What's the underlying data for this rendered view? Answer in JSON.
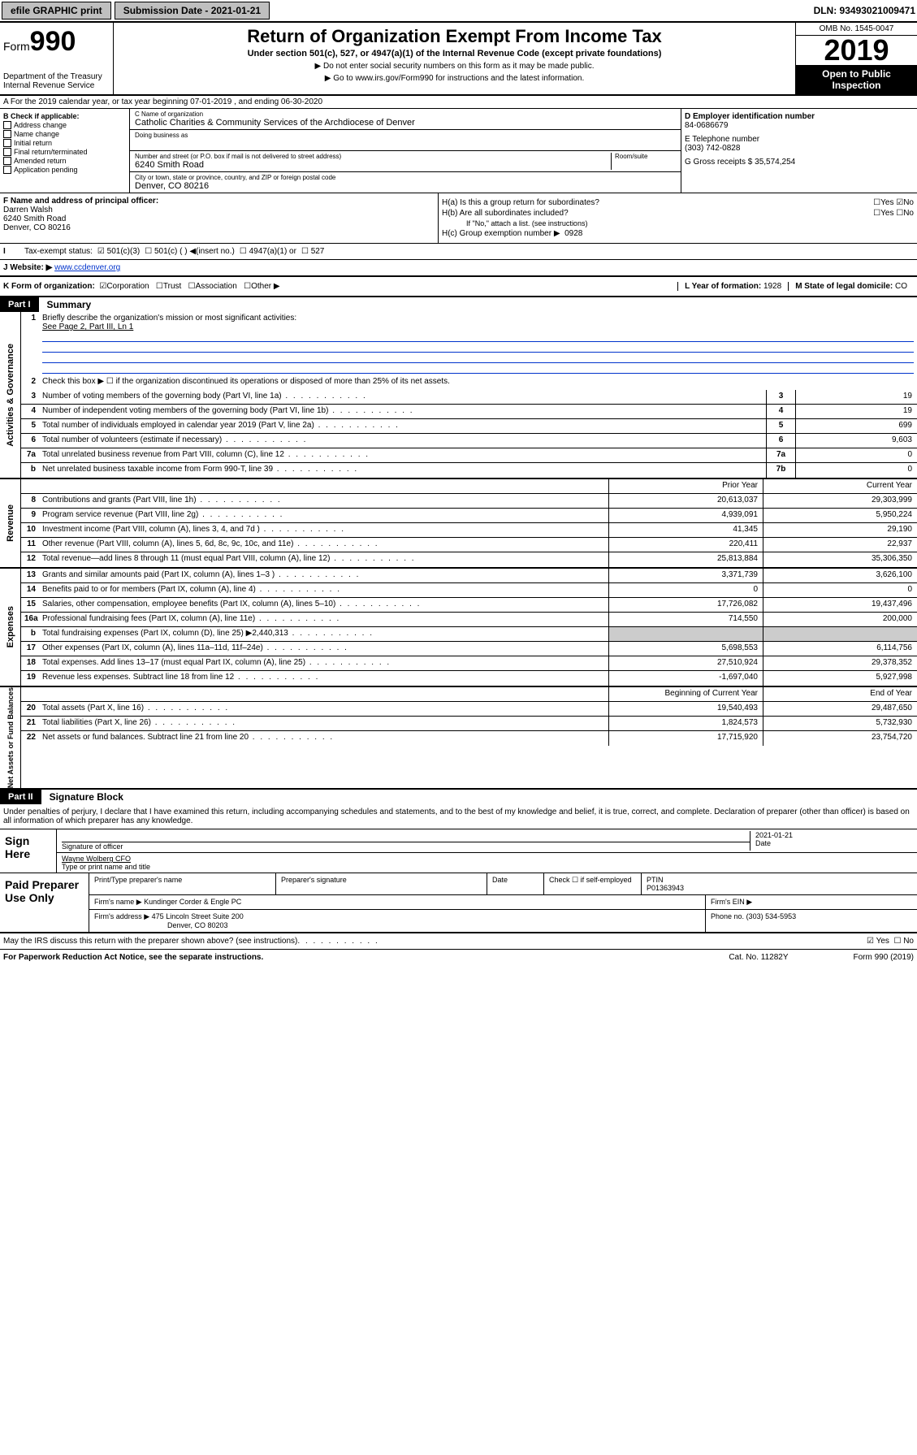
{
  "top": {
    "efile": "efile GRAPHIC print",
    "submission_label": "Submission Date - 2021-01-21",
    "dln": "DLN: 93493021009471"
  },
  "header": {
    "form_label": "Form",
    "form_num": "990",
    "dept": "Department of the Treasury Internal Revenue Service",
    "title": "Return of Organization Exempt From Income Tax",
    "subtitle": "Under section 501(c), 527, or 4947(a)(1) of the Internal Revenue Code (except private foundations)",
    "note1": "▶ Do not enter social security numbers on this form as it may be made public.",
    "note2": "▶ Go to www.irs.gov/Form990 for instructions and the latest information.",
    "omb": "OMB No. 1545-0047",
    "year": "2019",
    "open": "Open to Public Inspection"
  },
  "row_a": "A For the 2019 calendar year, or tax year beginning 07-01-2019    , and ending 06-30-2020",
  "box_b": {
    "title": "B Check if applicable:",
    "items": [
      "Address change",
      "Name change",
      "Initial return",
      "Final return/terminated",
      "Amended return",
      "Application pending"
    ]
  },
  "box_c": {
    "name_label": "C Name of organization",
    "name": "Catholic Charities & Community Services of the Archdiocese of Denver",
    "dba_label": "Doing business as",
    "addr_label": "Number and street (or P.O. box if mail is not delivered to street address)",
    "room_label": "Room/suite",
    "addr": "6240 Smith Road",
    "city_label": "City or town, state or province, country, and ZIP or foreign postal code",
    "city": "Denver, CO  80216"
  },
  "box_d": {
    "label": "D Employer identification number",
    "val": "84-0686679"
  },
  "box_e": {
    "label": "E Telephone number",
    "val": "(303) 742-0828"
  },
  "box_g": {
    "label": "G Gross receipts $",
    "val": "35,574,254"
  },
  "box_f": {
    "label": "F Name and address of principal officer:",
    "name": "Darren Walsh",
    "addr1": "6240 Smith Road",
    "addr2": "Denver, CO  80216"
  },
  "box_h": {
    "a": "H(a)  Is this a group return for subordinates?",
    "a_yes": "Yes",
    "a_no": "No",
    "b": "H(b)  Are all subordinates included?",
    "b_note": "If \"No,\" attach a list. (see instructions)",
    "c": "H(c)  Group exemption number ▶",
    "c_val": "0928"
  },
  "row_i": {
    "label": "Tax-exempt status:",
    "opt1": "501(c)(3)",
    "opt2": "501(c) (   ) ◀(insert no.)",
    "opt3": "4947(a)(1) or",
    "opt4": "527"
  },
  "row_j": {
    "label": "J Website: ▶",
    "val": "www.ccdenver.org"
  },
  "row_k": {
    "label": "K Form of organization:",
    "corp": "Corporation",
    "trust": "Trust",
    "assoc": "Association",
    "other": "Other ▶"
  },
  "row_l": {
    "label": "L Year of formation:",
    "val": "1928"
  },
  "row_m": {
    "label": "M State of legal domicile:",
    "val": "CO"
  },
  "part1": {
    "num": "Part I",
    "title": "Summary"
  },
  "governance": {
    "label": "Activities & Governance",
    "l1": "Briefly describe the organization's mission or most significant activities:",
    "l1_val": "See Page 2, Part III, Ln 1",
    "l2": "Check this box ▶ ☐  if the organization discontinued its operations or disposed of more than 25% of its net assets.",
    "rows": [
      {
        "n": "3",
        "d": "Number of voting members of the governing body (Part VI, line 1a)",
        "box": "3",
        "v": "19"
      },
      {
        "n": "4",
        "d": "Number of independent voting members of the governing body (Part VI, line 1b)",
        "box": "4",
        "v": "19"
      },
      {
        "n": "5",
        "d": "Total number of individuals employed in calendar year 2019 (Part V, line 2a)",
        "box": "5",
        "v": "699"
      },
      {
        "n": "6",
        "d": "Total number of volunteers (estimate if necessary)",
        "box": "6",
        "v": "9,603"
      },
      {
        "n": "7a",
        "d": "Total unrelated business revenue from Part VIII, column (C), line 12",
        "box": "7a",
        "v": "0"
      },
      {
        "n": "b",
        "d": "Net unrelated business taxable income from Form 990-T, line 39",
        "box": "7b",
        "v": "0"
      }
    ]
  },
  "revenue": {
    "label": "Revenue",
    "head_prior": "Prior Year",
    "head_curr": "Current Year",
    "rows": [
      {
        "n": "8",
        "d": "Contributions and grants (Part VIII, line 1h)",
        "p": "20,613,037",
        "c": "29,303,999"
      },
      {
        "n": "9",
        "d": "Program service revenue (Part VIII, line 2g)",
        "p": "4,939,091",
        "c": "5,950,224"
      },
      {
        "n": "10",
        "d": "Investment income (Part VIII, column (A), lines 3, 4, and 7d )",
        "p": "41,345",
        "c": "29,190"
      },
      {
        "n": "11",
        "d": "Other revenue (Part VIII, column (A), lines 5, 6d, 8c, 9c, 10c, and 11e)",
        "p": "220,411",
        "c": "22,937"
      },
      {
        "n": "12",
        "d": "Total revenue—add lines 8 through 11 (must equal Part VIII, column (A), line 12)",
        "p": "25,813,884",
        "c": "35,306,350"
      }
    ]
  },
  "expenses": {
    "label": "Expenses",
    "rows": [
      {
        "n": "13",
        "d": "Grants and similar amounts paid (Part IX, column (A), lines 1–3 )",
        "p": "3,371,739",
        "c": "3,626,100"
      },
      {
        "n": "14",
        "d": "Benefits paid to or for members (Part IX, column (A), line 4)",
        "p": "0",
        "c": "0"
      },
      {
        "n": "15",
        "d": "Salaries, other compensation, employee benefits (Part IX, column (A), lines 5–10)",
        "p": "17,726,082",
        "c": "19,437,496"
      },
      {
        "n": "16a",
        "d": "Professional fundraising fees (Part IX, column (A), line 11e)",
        "p": "714,550",
        "c": "200,000"
      },
      {
        "n": "b",
        "d": "Total fundraising expenses (Part IX, column (D), line 25) ▶2,440,313",
        "p": "",
        "c": ""
      },
      {
        "n": "17",
        "d": "Other expenses (Part IX, column (A), lines 11a–11d, 11f–24e)",
        "p": "5,698,553",
        "c": "6,114,756"
      },
      {
        "n": "18",
        "d": "Total expenses. Add lines 13–17 (must equal Part IX, column (A), line 25)",
        "p": "27,510,924",
        "c": "29,378,352"
      },
      {
        "n": "19",
        "d": "Revenue less expenses. Subtract line 18 from line 12",
        "p": "-1,697,040",
        "c": "5,927,998"
      }
    ]
  },
  "netassets": {
    "label": "Net Assets or Fund Balances",
    "head_prior": "Beginning of Current Year",
    "head_curr": "End of Year",
    "rows": [
      {
        "n": "20",
        "d": "Total assets (Part X, line 16)",
        "p": "19,540,493",
        "c": "29,487,650"
      },
      {
        "n": "21",
        "d": "Total liabilities (Part X, line 26)",
        "p": "1,824,573",
        "c": "5,732,930"
      },
      {
        "n": "22",
        "d": "Net assets or fund balances. Subtract line 21 from line 20",
        "p": "17,715,920",
        "c": "23,754,720"
      }
    ]
  },
  "part2": {
    "num": "Part II",
    "title": "Signature Block"
  },
  "sig": {
    "decl": "Under penalties of perjury, I declare that I have examined this return, including accompanying schedules and statements, and to the best of my knowledge and belief, it is true, correct, and complete. Declaration of preparer (other than officer) is based on all information of which preparer has any knowledge.",
    "sign_here": "Sign Here",
    "date": "2021-01-21",
    "sig_label": "Signature of officer",
    "date_label": "Date",
    "name": "Wayne Wolberg CFO",
    "name_label": "Type or print name and title"
  },
  "paid": {
    "title": "Paid Preparer Use Only",
    "h1": "Print/Type preparer's name",
    "h2": "Preparer's signature",
    "h3": "Date",
    "h4": "Check ☐ if self-employed",
    "h5": "PTIN",
    "ptin": "P01363943",
    "firm_label": "Firm's name    ▶",
    "firm": "Kundinger Corder & Engle PC",
    "ein_label": "Firm's EIN ▶",
    "addr_label": "Firm's address ▶",
    "addr1": "475 Lincoln Street Suite 200",
    "addr2": "Denver, CO  80203",
    "phone_label": "Phone no.",
    "phone": "(303) 534-5953"
  },
  "footer": {
    "q": "May the IRS discuss this return with the preparer shown above? (see instructions)",
    "yes": "Yes",
    "no": "No",
    "pra": "For Paperwork Reduction Act Notice, see the separate instructions.",
    "cat": "Cat. No. 11282Y",
    "form": "Form 990 (2019)"
  }
}
